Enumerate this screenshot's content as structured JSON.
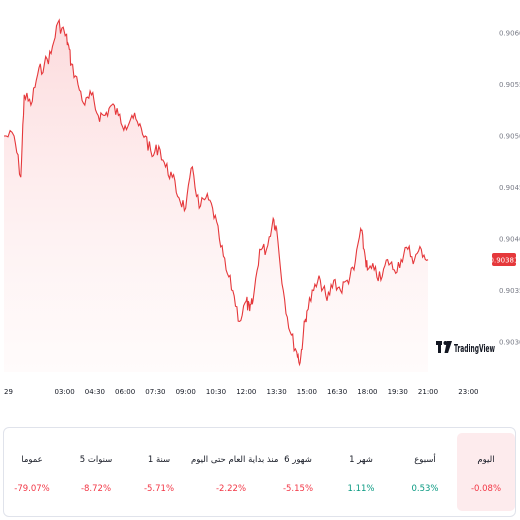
{
  "chart_data": {
    "type": "area",
    "ylim": [
      0.9026,
      0.9062
    ],
    "y_ticks": [
      "0.90600",
      "0.90550",
      "0.90500",
      "0.90450",
      "0.90400",
      "0.90350",
      "0.90300"
    ],
    "x_ticks": [
      "29",
      "03:00",
      "04:30",
      "06:00",
      "07:30",
      "09:00",
      "10:30",
      "12:00",
      "13:30",
      "15:00",
      "16:30",
      "18:00",
      "19:30",
      "21:00",
      "23:00"
    ],
    "last_price": "0.90381",
    "series": [
      {
        "x": [
          "00:00",
          "00:30",
          "00:50",
          "01:00",
          "01:20",
          "01:40",
          "02:00",
          "02:20",
          "02:40",
          "03:00",
          "03:10",
          "03:20",
          "03:40",
          "04:00",
          "04:20",
          "04:40",
          "05:00",
          "05:20",
          "05:40",
          "06:00",
          "06:20",
          "06:40",
          "07:00",
          "07:20",
          "07:40",
          "08:00",
          "08:20",
          "08:40",
          "09:00",
          "09:20",
          "09:40",
          "10:00",
          "10:20",
          "10:40",
          "11:00",
          "11:20",
          "11:40",
          "12:00",
          "12:10",
          "12:20",
          "12:40",
          "13:00",
          "13:20",
          "13:30",
          "13:50",
          "14:10",
          "14:30",
          "14:40",
          "14:50",
          "15:00",
          "15:20",
          "15:40",
          "16:00",
          "16:20",
          "16:40",
          "17:00",
          "17:20",
          "17:40",
          "17:50",
          "18:00",
          "18:20",
          "18:40",
          "19:00",
          "19:20",
          "19:40",
          "20:00",
          "20:20",
          "20:40",
          "21:00"
        ],
        "y": [
          0.905,
          0.905,
          0.9046,
          0.9054,
          0.9053,
          0.9056,
          0.9057,
          0.9058,
          0.9061,
          0.906,
          0.9059,
          0.9057,
          0.9055,
          0.9053,
          0.9054,
          0.9052,
          0.9052,
          0.9053,
          0.9052,
          0.9051,
          0.9052,
          0.9051,
          0.905,
          0.9048,
          0.9049,
          0.9047,
          0.9046,
          0.9044,
          0.9043,
          0.9047,
          0.9043,
          0.9044,
          0.9043,
          0.904,
          0.9037,
          0.9035,
          0.9032,
          0.9034,
          0.9033,
          0.9034,
          0.9039,
          0.9039,
          0.9042,
          0.9041,
          0.9035,
          0.9031,
          0.9029,
          0.9028,
          0.9031,
          0.9033,
          0.9035,
          0.9036,
          0.9034,
          0.9036,
          0.9035,
          0.9036,
          0.9037,
          0.9041,
          0.9039,
          0.9037,
          0.9037,
          0.9036,
          0.9038,
          0.9037,
          0.9038,
          0.9039,
          0.9038,
          0.9039,
          0.9038
        ]
      }
    ]
  },
  "performance": [
    {
      "label": "اليوم",
      "value": "‎-0.08%‎",
      "trend": "neg",
      "active": true
    },
    {
      "label": "أسبوع",
      "value": "0.53%",
      "trend": "pos",
      "active": false
    },
    {
      "label": "1 شهر",
      "value": "1.11%",
      "trend": "pos",
      "active": false
    },
    {
      "label": "6 شهور",
      "value": "‎-5.15%‎",
      "trend": "neg",
      "active": false
    },
    {
      "label": "منذ بداية العام حتى اليوم",
      "value": "‎-2.22%‎",
      "trend": "neg",
      "active": false
    },
    {
      "label": "1 سنة",
      "value": "‎-5.71%‎",
      "trend": "neg",
      "active": false
    },
    {
      "label": "5 سنوات",
      "value": "‎-8.72%‎",
      "trend": "neg",
      "active": false
    },
    {
      "label": "عموما",
      "value": "‎-79.07%‎",
      "trend": "neg",
      "active": false
    }
  ],
  "brand": {
    "name": "TradingView"
  },
  "colors": {
    "line": "#e5383b",
    "area_top": "#fcd9db",
    "area_bottom": "#fff7f7",
    "negative": "#f23645",
    "positive": "#089981",
    "price_tag": "#e5383b"
  }
}
